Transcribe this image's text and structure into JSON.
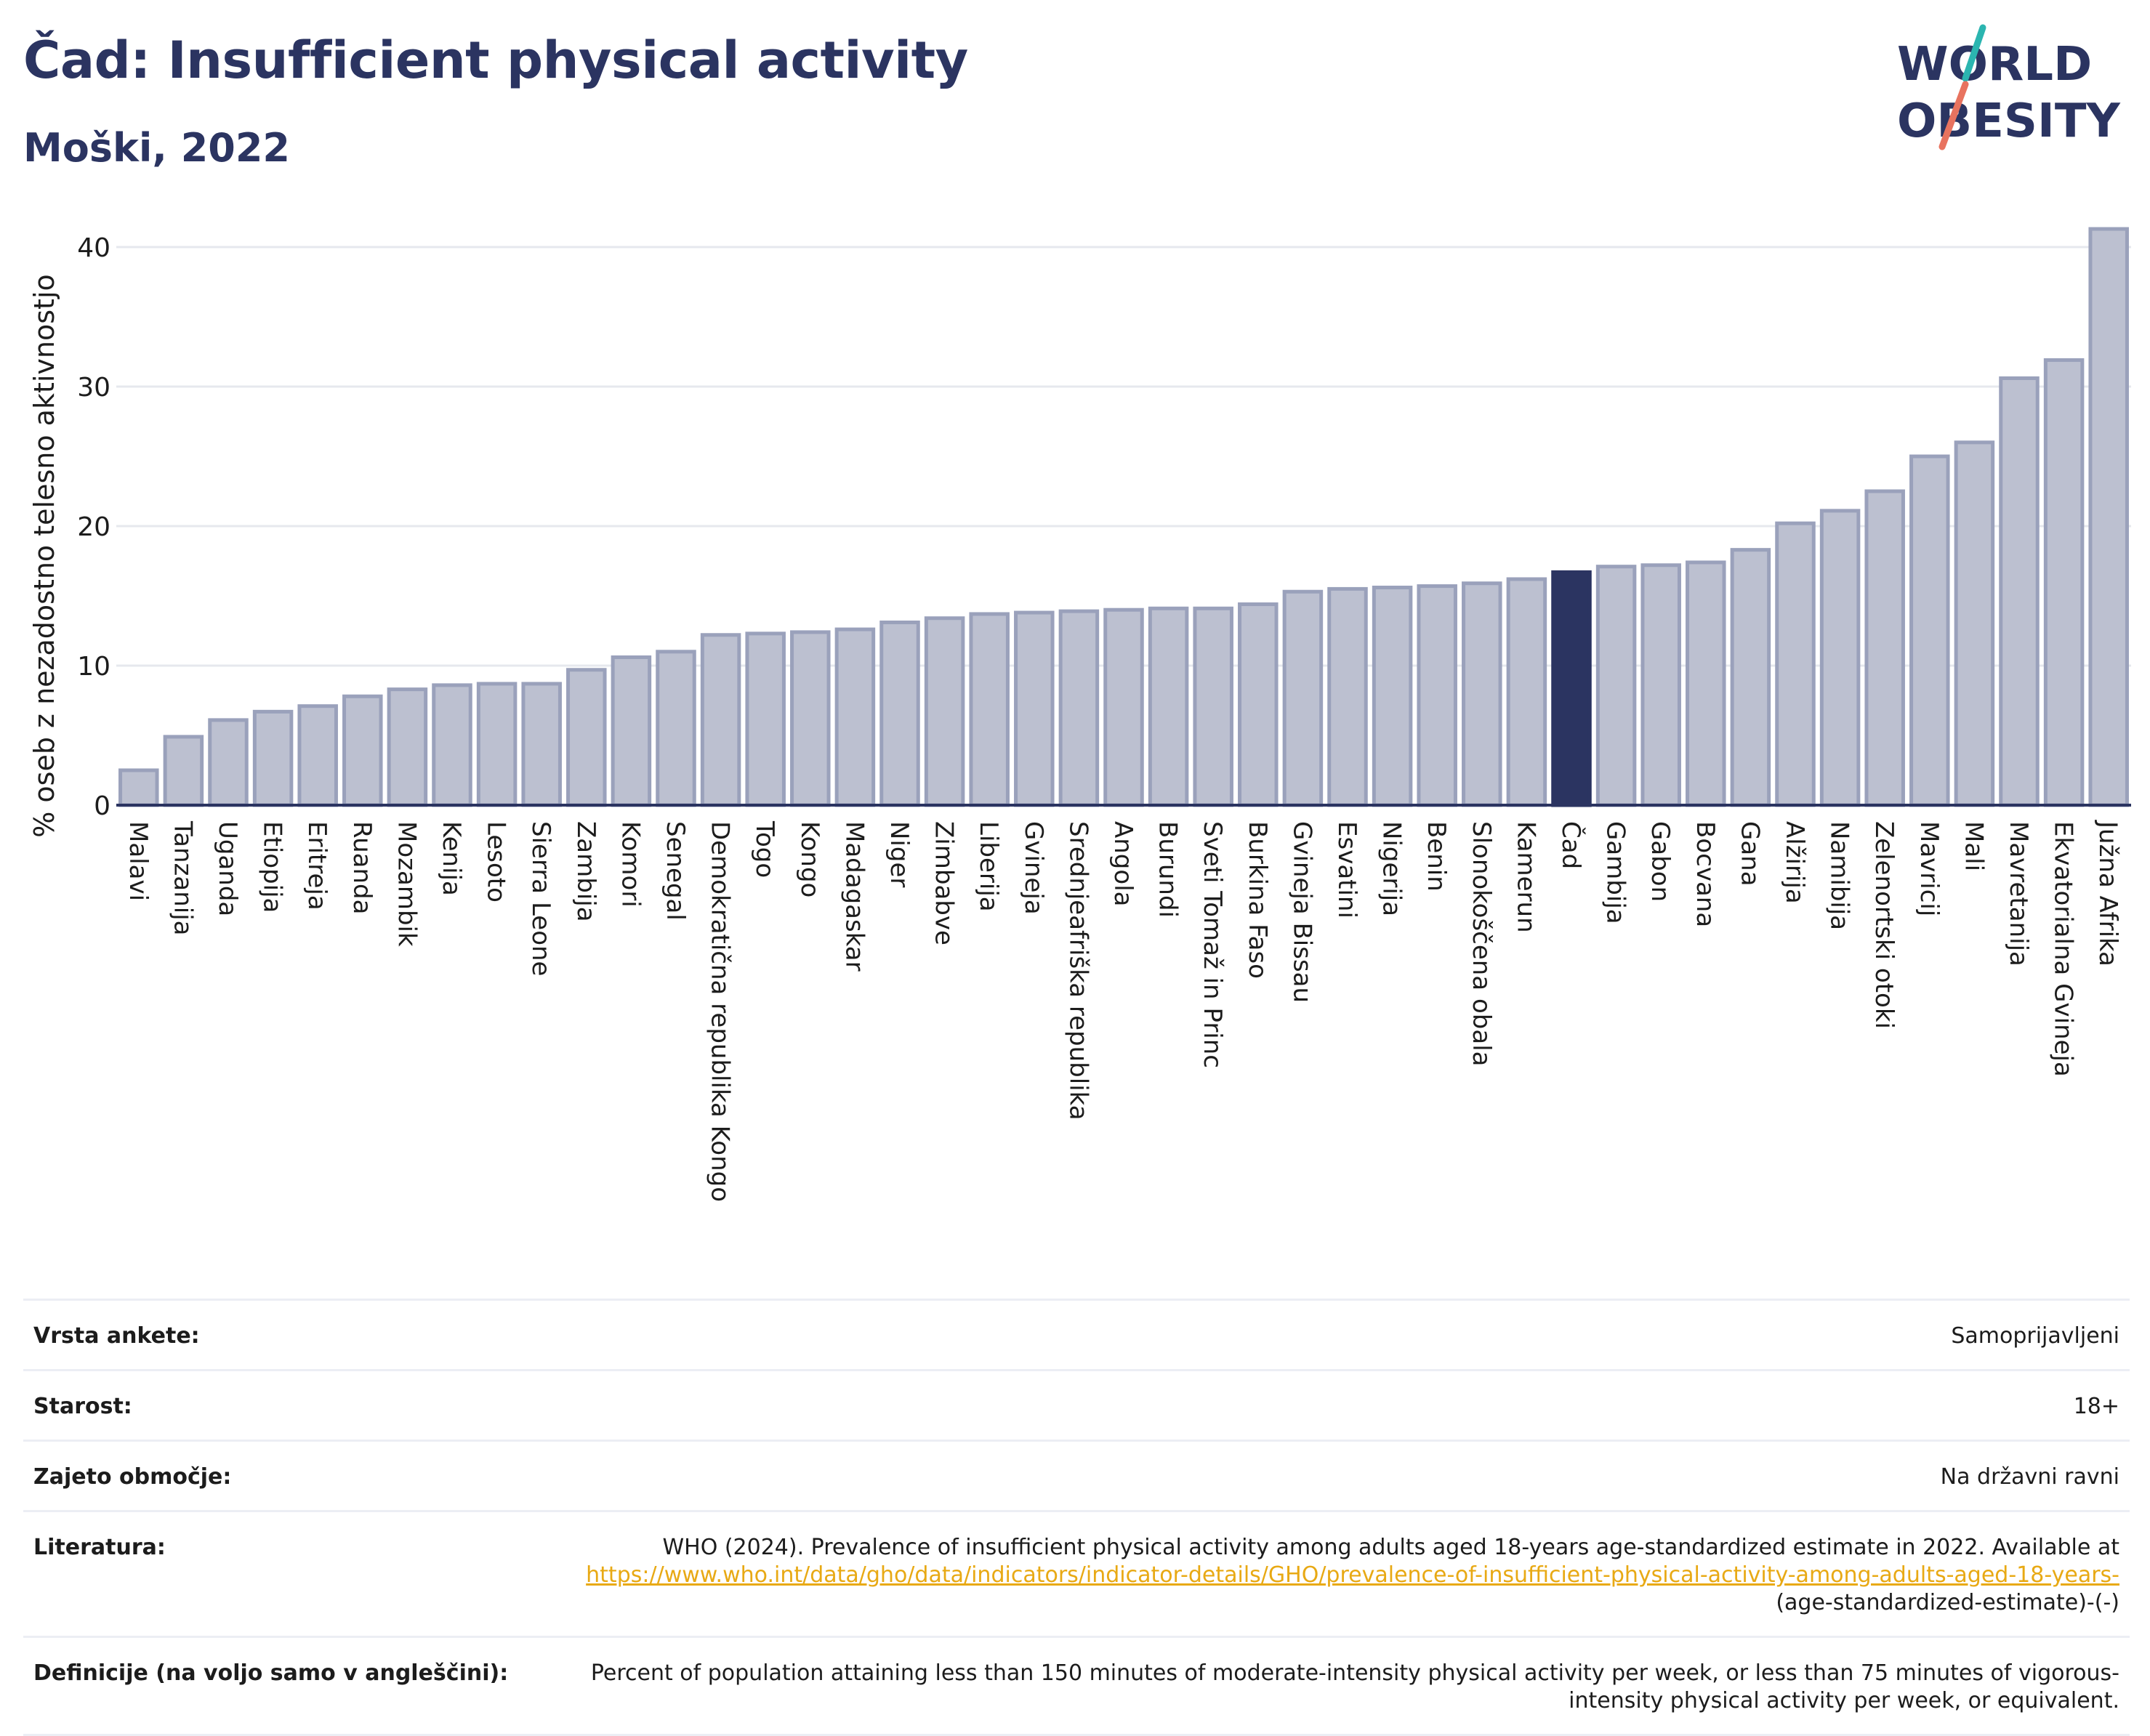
{
  "header": {
    "title": "Čad: Insufficient physical activity",
    "subtitle": "Moški, 2022"
  },
  "logo": {
    "line1": "WORLD",
    "line2": "OBESITY"
  },
  "colors": {
    "bar": "#bcc0d0",
    "bar_border": "#9aa1bb",
    "highlight": "#2b3461",
    "axis": "#2b3461",
    "grid": "#e6e8ee",
    "link": "#e8a914",
    "logo_teal": "#2bb5b0",
    "logo_coral": "#e8735f"
  },
  "chart_data": {
    "type": "bar",
    "title": "Čad: Insufficient physical activity",
    "subtitle": "Moški, 2022",
    "ylabel": "% oseb z nezadostno telesno aktivnostjo",
    "xlabel": "",
    "ylim": [
      0,
      43
    ],
    "yticks": [
      0,
      10,
      20,
      30,
      40
    ],
    "grid": true,
    "highlight": "Čad",
    "categories": [
      "Malavi",
      "Tanzanija",
      "Uganda",
      "Etiopija",
      "Eritreja",
      "Ruanda",
      "Mozambik",
      "Kenija",
      "Lesoto",
      "Sierra Leone",
      "Zambija",
      "Komori",
      "Senegal",
      "Demokratična republika Kongo",
      "Togo",
      "Kongo",
      "Madagaskar",
      "Niger",
      "Zimbabve",
      "Liberija",
      "Gvineja",
      "Srednjeafriška republika",
      "Angola",
      "Burundi",
      "Sveti Tomaž in Princ",
      "Burkina Faso",
      "Gvineja Bissau",
      "Esvatini",
      "Nigerija",
      "Benin",
      "Slonokoščena obala",
      "Kamerun",
      "Čad",
      "Gambija",
      "Gabon",
      "Bocvana",
      "Gana",
      "Alžirija",
      "Namibija",
      "Zelenortski otoki",
      "Mavricij",
      "Mali",
      "Mavretanija",
      "Ekvatorialna Gvineja",
      "Južna Afrika"
    ],
    "values": [
      2.5,
      4.9,
      6.1,
      6.7,
      7.1,
      7.8,
      8.3,
      8.6,
      8.7,
      8.7,
      9.7,
      10.6,
      11.0,
      12.2,
      12.3,
      12.4,
      12.6,
      13.1,
      13.4,
      13.7,
      13.8,
      13.9,
      14.0,
      14.1,
      14.1,
      14.4,
      15.3,
      15.5,
      15.6,
      15.7,
      15.9,
      16.2,
      16.7,
      17.1,
      17.2,
      17.4,
      18.3,
      20.2,
      21.1,
      22.5,
      25.0,
      26.0,
      30.6,
      31.9,
      41.3
    ]
  },
  "meta": [
    {
      "label": "Vrsta ankete:",
      "value": "Samoprijavljeni"
    },
    {
      "label": "Starost:",
      "value": "18+"
    },
    {
      "label": "Zajeto območje:",
      "value": "Na državni ravni"
    },
    {
      "label": "Literatura:",
      "value": "WHO (2024). Prevalence of insufficient physical activity among adults aged 18-years age-standardized estimate in 2022. Available at",
      "link": "https://www.who.int/data/gho/data/indicators/indicator-details/GHO/prevalence-of-insufficient-physical-activity-among-adults-aged-18-years-",
      "suffix": "(age-standardized-estimate)-(-)"
    },
    {
      "label": "Definicije (na voljo samo v angleščini):",
      "value": "Percent of population attaining less than 150 minutes of moderate-intensity physical activity per week, or less than 75 minutes of vigorous-intensity physical activity per week, or equivalent."
    }
  ]
}
